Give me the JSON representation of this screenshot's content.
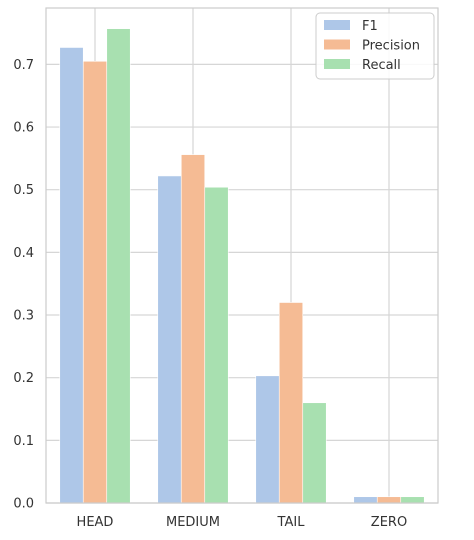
{
  "chart_data": {
    "type": "bar",
    "title": "",
    "xlabel": "",
    "ylabel": "",
    "categories": [
      "HEAD",
      "MEDIUM",
      "TAIL",
      "ZERO"
    ],
    "series": [
      {
        "name": "F1",
        "color": "#aec7e8",
        "values": [
          0.727,
          0.522,
          0.203,
          0.01
        ]
      },
      {
        "name": "Precision",
        "color": "#f5bb94",
        "values": [
          0.705,
          0.556,
          0.32,
          0.01
        ]
      },
      {
        "name": "Recall",
        "color": "#a8e0b0",
        "values": [
          0.757,
          0.504,
          0.16,
          0.01
        ]
      }
    ],
    "ylim": [
      0,
      0.79
    ],
    "yticks": [
      0.0,
      0.1,
      0.2,
      0.3,
      0.4,
      0.5,
      0.6,
      0.7
    ],
    "ytick_labels": [
      "0.0",
      "0.1",
      "0.2",
      "0.3",
      "0.4",
      "0.5",
      "0.6",
      "0.7"
    ],
    "grid": true,
    "legend_position": "top-right"
  }
}
